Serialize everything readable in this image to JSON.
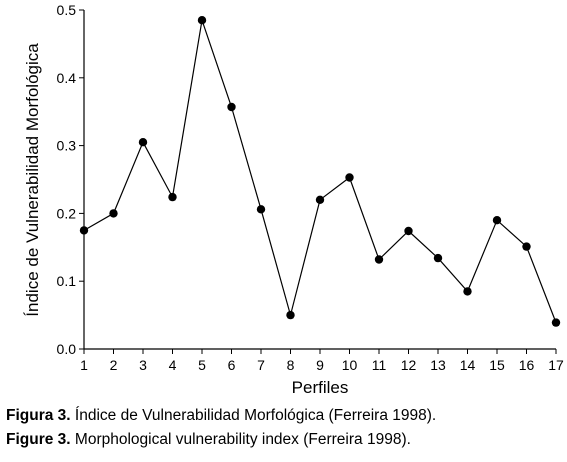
{
  "chart_data": {
    "type": "line",
    "title": "",
    "xlabel": "Perfiles",
    "ylabel": "Índice de Vulnerabilidad Morfológica",
    "x": [
      1,
      2,
      3,
      4,
      5,
      6,
      7,
      8,
      9,
      10,
      11,
      12,
      13,
      14,
      15,
      16,
      17
    ],
    "xlim": [
      1,
      17
    ],
    "ylim": [
      0,
      0.5
    ],
    "yticks": [
      "0.0",
      "0.1",
      "0.2",
      "0.3",
      "0.4",
      "0.5"
    ],
    "xticks": [
      "1",
      "2",
      "3",
      "4",
      "5",
      "6",
      "7",
      "8",
      "9",
      "10",
      "11",
      "12",
      "13",
      "14",
      "15",
      "16",
      "17"
    ],
    "grid": false,
    "series": [
      {
        "values": [
          0.175,
          0.2,
          0.305,
          0.224,
          0.485,
          0.357,
          0.206,
          0.05,
          0.22,
          0.253,
          0.132,
          0.174,
          0.134,
          0.085,
          0.19,
          0.151,
          0.039
        ],
        "color": "#000000",
        "marker": "filled-circle"
      }
    ]
  },
  "captions": {
    "es": {
      "label": "Figura 3.",
      "text": " Índice de Vulnerabilidad Morfológica (Ferreira 1998)."
    },
    "en": {
      "label": "Figure 3.",
      "text": " Morphological vulnerability index (Ferreira 1998)."
    }
  }
}
